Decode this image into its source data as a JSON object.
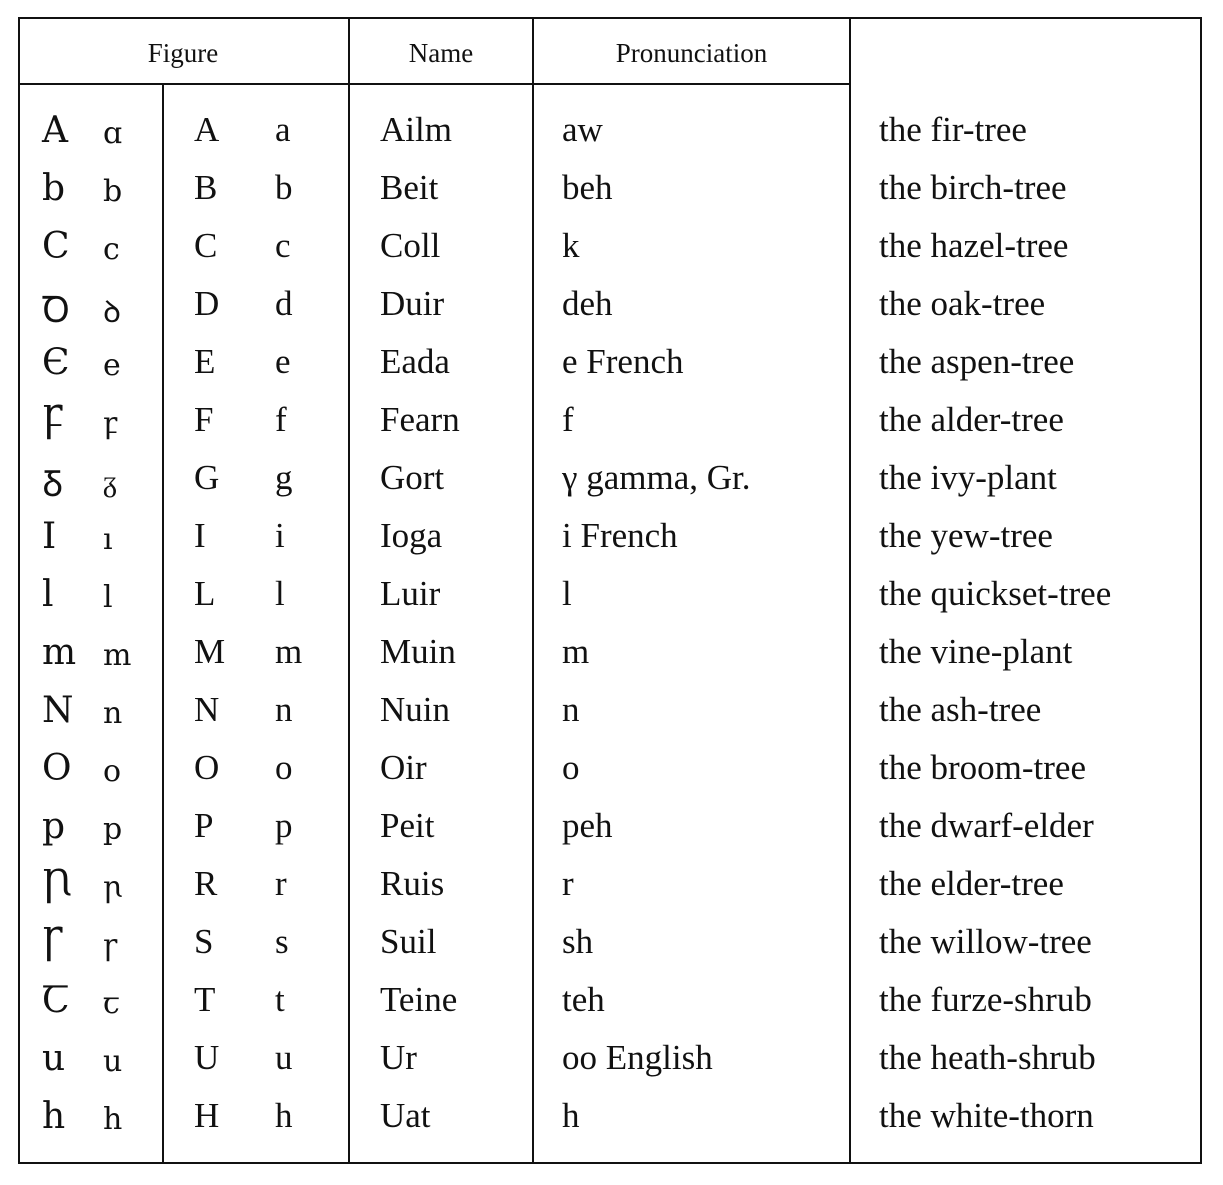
{
  "headers": {
    "figure": "Figure",
    "name": "Name",
    "pronunciation": "Pronunciation",
    "meaning": ""
  },
  "rows": [
    {
      "irish_upper": "A",
      "irish_lower": "ɑ",
      "upper": "A",
      "lower": "a",
      "name": "Ailm",
      "pronunciation": "aw",
      "meaning": "the fir-tree"
    },
    {
      "irish_upper": "b",
      "irish_lower": "b",
      "upper": "B",
      "lower": "b",
      "name": "Beit",
      "pronunciation": "beh",
      "meaning": "the birch-tree"
    },
    {
      "irish_upper": "C",
      "irish_lower": "c",
      "upper": "C",
      "lower": "c",
      "name": "Coll",
      "pronunciation": "k",
      "meaning": "the hazel-tree"
    },
    {
      "irish_upper": "Ꝺ",
      "irish_lower": "ꝺ",
      "upper": "D",
      "lower": "d",
      "name": "Duir",
      "pronunciation": "deh",
      "meaning": "the oak-tree"
    },
    {
      "irish_upper": "Є",
      "irish_lower": "e",
      "upper": "E",
      "lower": "e",
      "name": "Eada",
      "pronunciation": "e French",
      "meaning": "the aspen-tree"
    },
    {
      "irish_upper": "Ꝼ",
      "irish_lower": "ꝼ",
      "upper": "F",
      "lower": "f",
      "name": "Fearn",
      "pronunciation": "f",
      "meaning": "the alder-tree"
    },
    {
      "irish_upper": "Ᵹ",
      "irish_lower": "ᵹ",
      "upper": "G",
      "lower": "g",
      "name": "Gort",
      "pronunciation": "γ gamma, Gr.",
      "meaning": "the ivy-plant"
    },
    {
      "irish_upper": "I",
      "irish_lower": "ı",
      "upper": "I",
      "lower": "i",
      "name": "Ioga",
      "pronunciation": "i French",
      "meaning": "the yew-tree"
    },
    {
      "irish_upper": "l",
      "irish_lower": "l",
      "upper": "L",
      "lower": "l",
      "name": "Luir",
      "pronunciation": "l",
      "meaning": "the quickset-tree"
    },
    {
      "irish_upper": "m",
      "irish_lower": "m",
      "upper": "M",
      "lower": "m",
      "name": "Muin",
      "pronunciation": "m",
      "meaning": "the vine-plant"
    },
    {
      "irish_upper": "N",
      "irish_lower": "n",
      "upper": "N",
      "lower": "n",
      "name": "Nuin",
      "pronunciation": "n",
      "meaning": "the ash-tree"
    },
    {
      "irish_upper": "O",
      "irish_lower": "o",
      "upper": "O",
      "lower": "o",
      "name": "Oir",
      "pronunciation": "o",
      "meaning": "the broom-tree"
    },
    {
      "irish_upper": "p",
      "irish_lower": "p",
      "upper": "P",
      "lower": "p",
      "name": "Peit",
      "pronunciation": "peh",
      "meaning": "the dwarf-elder"
    },
    {
      "irish_upper": "Ꞃ",
      "irish_lower": "ꞃ",
      "upper": "R",
      "lower": "r",
      "name": "Ruis",
      "pronunciation": "r",
      "meaning": "the elder-tree"
    },
    {
      "irish_upper": "Ꞅ",
      "irish_lower": "ꞅ",
      "upper": "S",
      "lower": "s",
      "name": "Suil",
      "pronunciation": "sh",
      "meaning": "the willow-tree"
    },
    {
      "irish_upper": "Ꞇ",
      "irish_lower": "ꞇ",
      "upper": "T",
      "lower": "t",
      "name": "Teine",
      "pronunciation": "teh",
      "meaning": "the furze-shrub"
    },
    {
      "irish_upper": "u",
      "irish_lower": "u",
      "upper": "U",
      "lower": "u",
      "name": "Ur",
      "pronunciation": "oo English",
      "meaning": "the heath-shrub"
    },
    {
      "irish_upper": "h",
      "irish_lower": "h",
      "upper": "H",
      "lower": "h",
      "name": "Uat",
      "pronunciation": "h",
      "meaning": "the white-thorn"
    }
  ]
}
